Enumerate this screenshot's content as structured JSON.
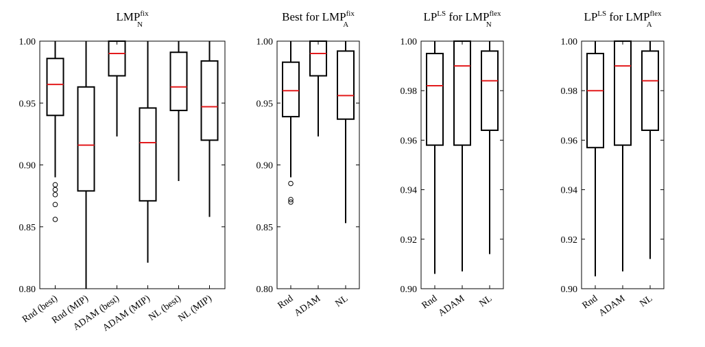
{
  "chart_data": [
    {
      "type": "box",
      "title": {
        "base": "LMP",
        "sup": "fix",
        "sub": "N",
        "prefix": "",
        "sup1": "",
        "mid": ""
      },
      "ylim": [
        0.8,
        1.0
      ],
      "yticks": [
        "0.80",
        "0.85",
        "0.90",
        "0.95",
        "1.00"
      ],
      "ytick_values": [
        0.8,
        0.85,
        0.9,
        0.95,
        1.0
      ],
      "categories": [
        "Rnd (best)",
        "Rnd (MIP)",
        "ADAM (best)",
        "ADAM (MIP)",
        "NL (best)",
        "NL (MIP)"
      ],
      "boxes": [
        {
          "whislo": 0.89,
          "q1": 0.94,
          "med": 0.965,
          "q3": 0.986,
          "whishi": 1.0,
          "fliers": [
            0.884,
            0.88,
            0.876,
            0.868,
            0.856
          ]
        },
        {
          "whislo": 0.8,
          "q1": 0.879,
          "med": 0.916,
          "q3": 0.963,
          "whishi": 1.0,
          "fliers": []
        },
        {
          "whislo": 0.923,
          "q1": 0.972,
          "med": 0.99,
          "q3": 1.0,
          "whishi": 1.0,
          "fliers": []
        },
        {
          "whislo": 0.821,
          "q1": 0.871,
          "med": 0.918,
          "q3": 0.946,
          "whishi": 1.0,
          "fliers": []
        },
        {
          "whislo": 0.887,
          "q1": 0.944,
          "med": 0.963,
          "q3": 0.991,
          "whishi": 1.0,
          "fliers": []
        },
        {
          "whislo": 0.858,
          "q1": 0.92,
          "med": 0.947,
          "q3": 0.984,
          "whishi": 1.0,
          "fliers": []
        }
      ]
    },
    {
      "type": "box",
      "title": {
        "prefix": "Best for ",
        "base": "LMP",
        "sup": "fix",
        "sub": "A",
        "sup1": "",
        "mid": ""
      },
      "ylim": [
        0.8,
        1.0
      ],
      "yticks": [
        "0.80",
        "0.85",
        "0.90",
        "0.95",
        "1.00"
      ],
      "ytick_values": [
        0.8,
        0.85,
        0.9,
        0.95,
        1.0
      ],
      "categories": [
        "Rnd",
        "ADAM",
        "NL"
      ],
      "boxes": [
        {
          "whislo": 0.89,
          "q1": 0.939,
          "med": 0.96,
          "q3": 0.983,
          "whishi": 1.0,
          "fliers": [
            0.885,
            0.872,
            0.87
          ]
        },
        {
          "whislo": 0.923,
          "q1": 0.972,
          "med": 0.99,
          "q3": 1.0,
          "whishi": 1.0,
          "fliers": []
        },
        {
          "whislo": 0.853,
          "q1": 0.937,
          "med": 0.956,
          "q3": 0.992,
          "whishi": 1.0,
          "fliers": []
        }
      ]
    },
    {
      "type": "box",
      "title": {
        "prefix": "LP",
        "sup1": "LS",
        "mid": " for ",
        "base": "LMP",
        "sup": "flex",
        "sub": "N"
      },
      "ylim": [
        0.9,
        1.0
      ],
      "yticks": [
        "0.90",
        "0.92",
        "0.94",
        "0.96",
        "0.98",
        "1.00"
      ],
      "ytick_values": [
        0.9,
        0.92,
        0.94,
        0.96,
        0.98,
        1.0
      ],
      "categories": [
        "Rnd",
        "ADAM",
        "NL"
      ],
      "boxes": [
        {
          "whislo": 0.906,
          "q1": 0.958,
          "med": 0.982,
          "q3": 0.995,
          "whishi": 1.0,
          "fliers": []
        },
        {
          "whislo": 0.907,
          "q1": 0.958,
          "med": 0.99,
          "q3": 1.0,
          "whishi": 1.0,
          "fliers": []
        },
        {
          "whislo": 0.914,
          "q1": 0.964,
          "med": 0.984,
          "q3": 0.996,
          "whishi": 1.0,
          "fliers": []
        }
      ]
    },
    {
      "type": "box",
      "title": {
        "prefix": "LP",
        "sup1": "LS",
        "mid": " for ",
        "base": "LMP",
        "sup": "flex",
        "sub": "A"
      },
      "ylim": [
        0.9,
        1.0
      ],
      "yticks": [
        "0.90",
        "0.92",
        "0.94",
        "0.96",
        "0.98",
        "1.00"
      ],
      "ytick_values": [
        0.9,
        0.92,
        0.94,
        0.96,
        0.98,
        1.0
      ],
      "categories": [
        "Rnd",
        "ADAM",
        "NL"
      ],
      "boxes": [
        {
          "whislo": 0.905,
          "q1": 0.957,
          "med": 0.98,
          "q3": 0.995,
          "whishi": 1.0,
          "fliers": []
        },
        {
          "whislo": 0.907,
          "q1": 0.958,
          "med": 0.99,
          "q3": 1.0,
          "whishi": 1.0,
          "fliers": []
        },
        {
          "whislo": 0.912,
          "q1": 0.964,
          "med": 0.984,
          "q3": 0.996,
          "whishi": 1.0,
          "fliers": []
        }
      ]
    }
  ],
  "colors": {
    "median": "#e31a1c",
    "box": "#000000",
    "background": "#ffffff"
  }
}
